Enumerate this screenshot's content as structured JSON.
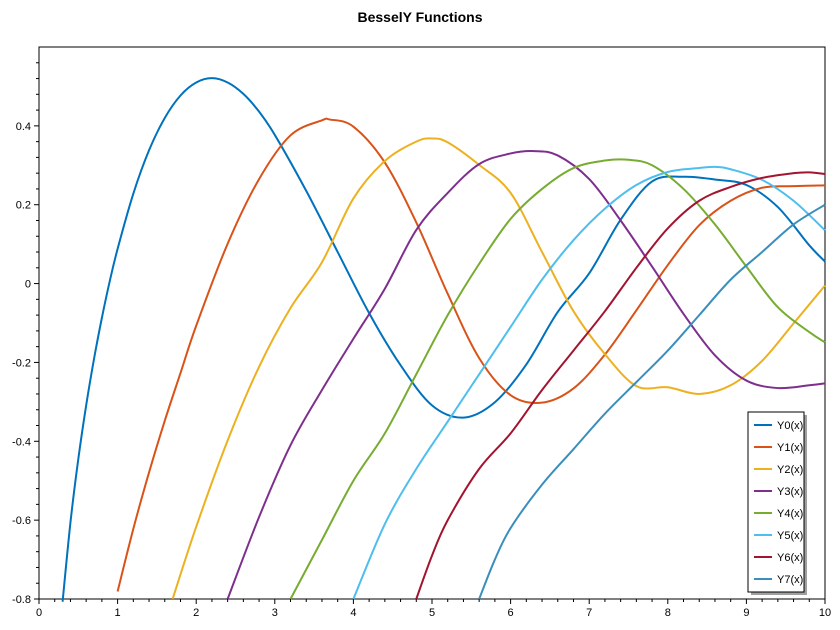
{
  "chart_data": {
    "type": "line",
    "title": "BesselY Functions",
    "xlabel": "",
    "ylabel": "",
    "xlim": [
      0,
      10
    ],
    "ylim": [
      -0.8,
      0.6
    ],
    "x_ticks": [
      "0",
      "1",
      "2",
      "3",
      "4",
      "5",
      "6",
      "7",
      "8",
      "9",
      "10"
    ],
    "y_ticks": [
      "-0.8",
      "-0.6",
      "-0.4",
      "-0.2",
      "0",
      "0.2",
      "0.4"
    ],
    "grid": false,
    "legend_position": "bottom-right",
    "series": [
      {
        "name": "Y0(x)",
        "color": "#0072bd",
        "x": [
          0.3,
          0.4,
          0.5,
          0.6,
          0.7,
          0.8,
          0.9,
          1,
          1.2,
          1.4,
          1.6,
          1.8,
          2,
          2.2,
          2.4,
          2.6,
          2.8,
          3,
          3.4,
          3.8,
          4.2,
          4.6,
          5,
          5.4,
          5.8,
          6.2,
          6.6,
          7,
          7.4,
          7.8,
          8.2,
          8.6,
          9,
          9.4,
          9.8,
          10
        ],
        "y": [
          -0.807,
          -0.606,
          -0.445,
          -0.309,
          -0.191,
          -0.087,
          0.006,
          0.088,
          0.228,
          0.338,
          0.42,
          0.477,
          0.51,
          0.521,
          0.51,
          0.481,
          0.436,
          0.377,
          0.235,
          0.08,
          -0.075,
          -0.207,
          -0.309,
          -0.34,
          -0.301,
          -0.205,
          -0.072,
          0.026,
          0.162,
          0.259,
          0.271,
          0.264,
          0.25,
          0.194,
          0.097,
          0.056
        ]
      },
      {
        "name": "Y1(x)",
        "color": "#d95319",
        "x": [
          1,
          1.2,
          1.4,
          1.6,
          1.8,
          2,
          2.4,
          2.8,
          3.2,
          3.6,
          3.7,
          4,
          4.4,
          4.8,
          5.2,
          5.6,
          6,
          6.4,
          6.8,
          7.2,
          7.6,
          8,
          8.4,
          8.8,
          9.2,
          9.6,
          10
        ],
        "y": [
          -0.781,
          -0.622,
          -0.479,
          -0.348,
          -0.227,
          -0.107,
          0.101,
          0.265,
          0.376,
          0.414,
          0.416,
          0.398,
          0.307,
          0.155,
          -0.026,
          -0.189,
          -0.283,
          -0.302,
          -0.266,
          -0.18,
          -0.068,
          0.047,
          0.148,
          0.21,
          0.243,
          0.247,
          0.249
        ]
      },
      {
        "name": "Y2(x)",
        "color": "#edb120",
        "x": [
          1.7,
          2,
          2.4,
          2.8,
          3.2,
          3.6,
          4,
          4.4,
          4.8,
          5,
          5.2,
          5.6,
          6,
          6.4,
          6.8,
          7.2,
          7.6,
          8,
          8.4,
          8.8,
          9.2,
          9.6,
          10
        ],
        "y": [
          -0.8,
          -0.617,
          -0.398,
          -0.211,
          -0.062,
          0.054,
          0.216,
          0.311,
          0.36,
          0.368,
          0.358,
          0.301,
          0.23,
          0.08,
          -0.07,
          -0.179,
          -0.26,
          -0.263,
          -0.28,
          -0.258,
          -0.196,
          -0.101,
          -0.005
        ]
      },
      {
        "name": "Y3(x)",
        "color": "#7e2f8e",
        "x": [
          2.4,
          2.8,
          3.2,
          3.6,
          4,
          4.4,
          4.8,
          5.2,
          5.6,
          6,
          6.3,
          6.6,
          7,
          7.4,
          7.8,
          8.2,
          8.6,
          9,
          9.4,
          9.8,
          10
        ],
        "y": [
          -0.8,
          -0.592,
          -0.41,
          -0.27,
          -0.14,
          -0.013,
          0.136,
          0.23,
          0.303,
          0.33,
          0.336,
          0.325,
          0.265,
          0.16,
          0.043,
          -0.077,
          -0.182,
          -0.246,
          -0.265,
          -0.258,
          -0.253
        ]
      },
      {
        "name": "Y4(x)",
        "color": "#77ac30",
        "x": [
          3.2,
          3.6,
          4,
          4.4,
          4.8,
          5.2,
          5.6,
          6,
          6.4,
          6.8,
          7.2,
          7.5,
          7.8,
          8.2,
          8.6,
          9,
          9.4,
          9.8,
          10
        ],
        "y": [
          -0.8,
          -0.65,
          -0.5,
          -0.38,
          -0.23,
          -0.08,
          0.05,
          0.164,
          0.24,
          0.293,
          0.312,
          0.314,
          0.3,
          0.24,
          0.15,
          0.043,
          -0.06,
          -0.123,
          -0.149
        ]
      },
      {
        "name": "Y5(x)",
        "color": "#4dbeee",
        "x": [
          4,
          4.4,
          4.8,
          5.2,
          5.6,
          6,
          6.4,
          6.8,
          7.2,
          7.6,
          8,
          8.4,
          8.6,
          8.8,
          9.2,
          9.6,
          10
        ],
        "y": [
          -0.8,
          -0.61,
          -0.47,
          -0.35,
          -0.23,
          -0.11,
          0.01,
          0.11,
          0.19,
          0.25,
          0.283,
          0.293,
          0.296,
          0.29,
          0.263,
          0.21,
          0.135
        ]
      },
      {
        "name": "Y6(x)",
        "color": "#a2142f",
        "x": [
          4.8,
          5,
          5.2,
          5.6,
          6,
          6.4,
          6.8,
          7.2,
          7.6,
          8,
          8.4,
          8.8,
          9.2,
          9.6,
          9.8,
          10
        ],
        "y": [
          -0.8,
          -0.69,
          -0.6,
          -0.47,
          -0.38,
          -0.27,
          -0.17,
          -0.07,
          0.04,
          0.14,
          0.21,
          0.245,
          0.268,
          0.28,
          0.282,
          0.278
        ]
      },
      {
        "name": "Y7(x)",
        "color": "#3a8ebd",
        "x": [
          5.6,
          5.8,
          6,
          6.4,
          6.8,
          7.2,
          7.6,
          8,
          8.4,
          8.8,
          9.2,
          9.6,
          10
        ],
        "y": [
          -0.8,
          -0.7,
          -0.62,
          -0.51,
          -0.42,
          -0.33,
          -0.25,
          -0.17,
          -0.08,
          0.01,
          0.08,
          0.15,
          0.2
        ]
      }
    ]
  }
}
